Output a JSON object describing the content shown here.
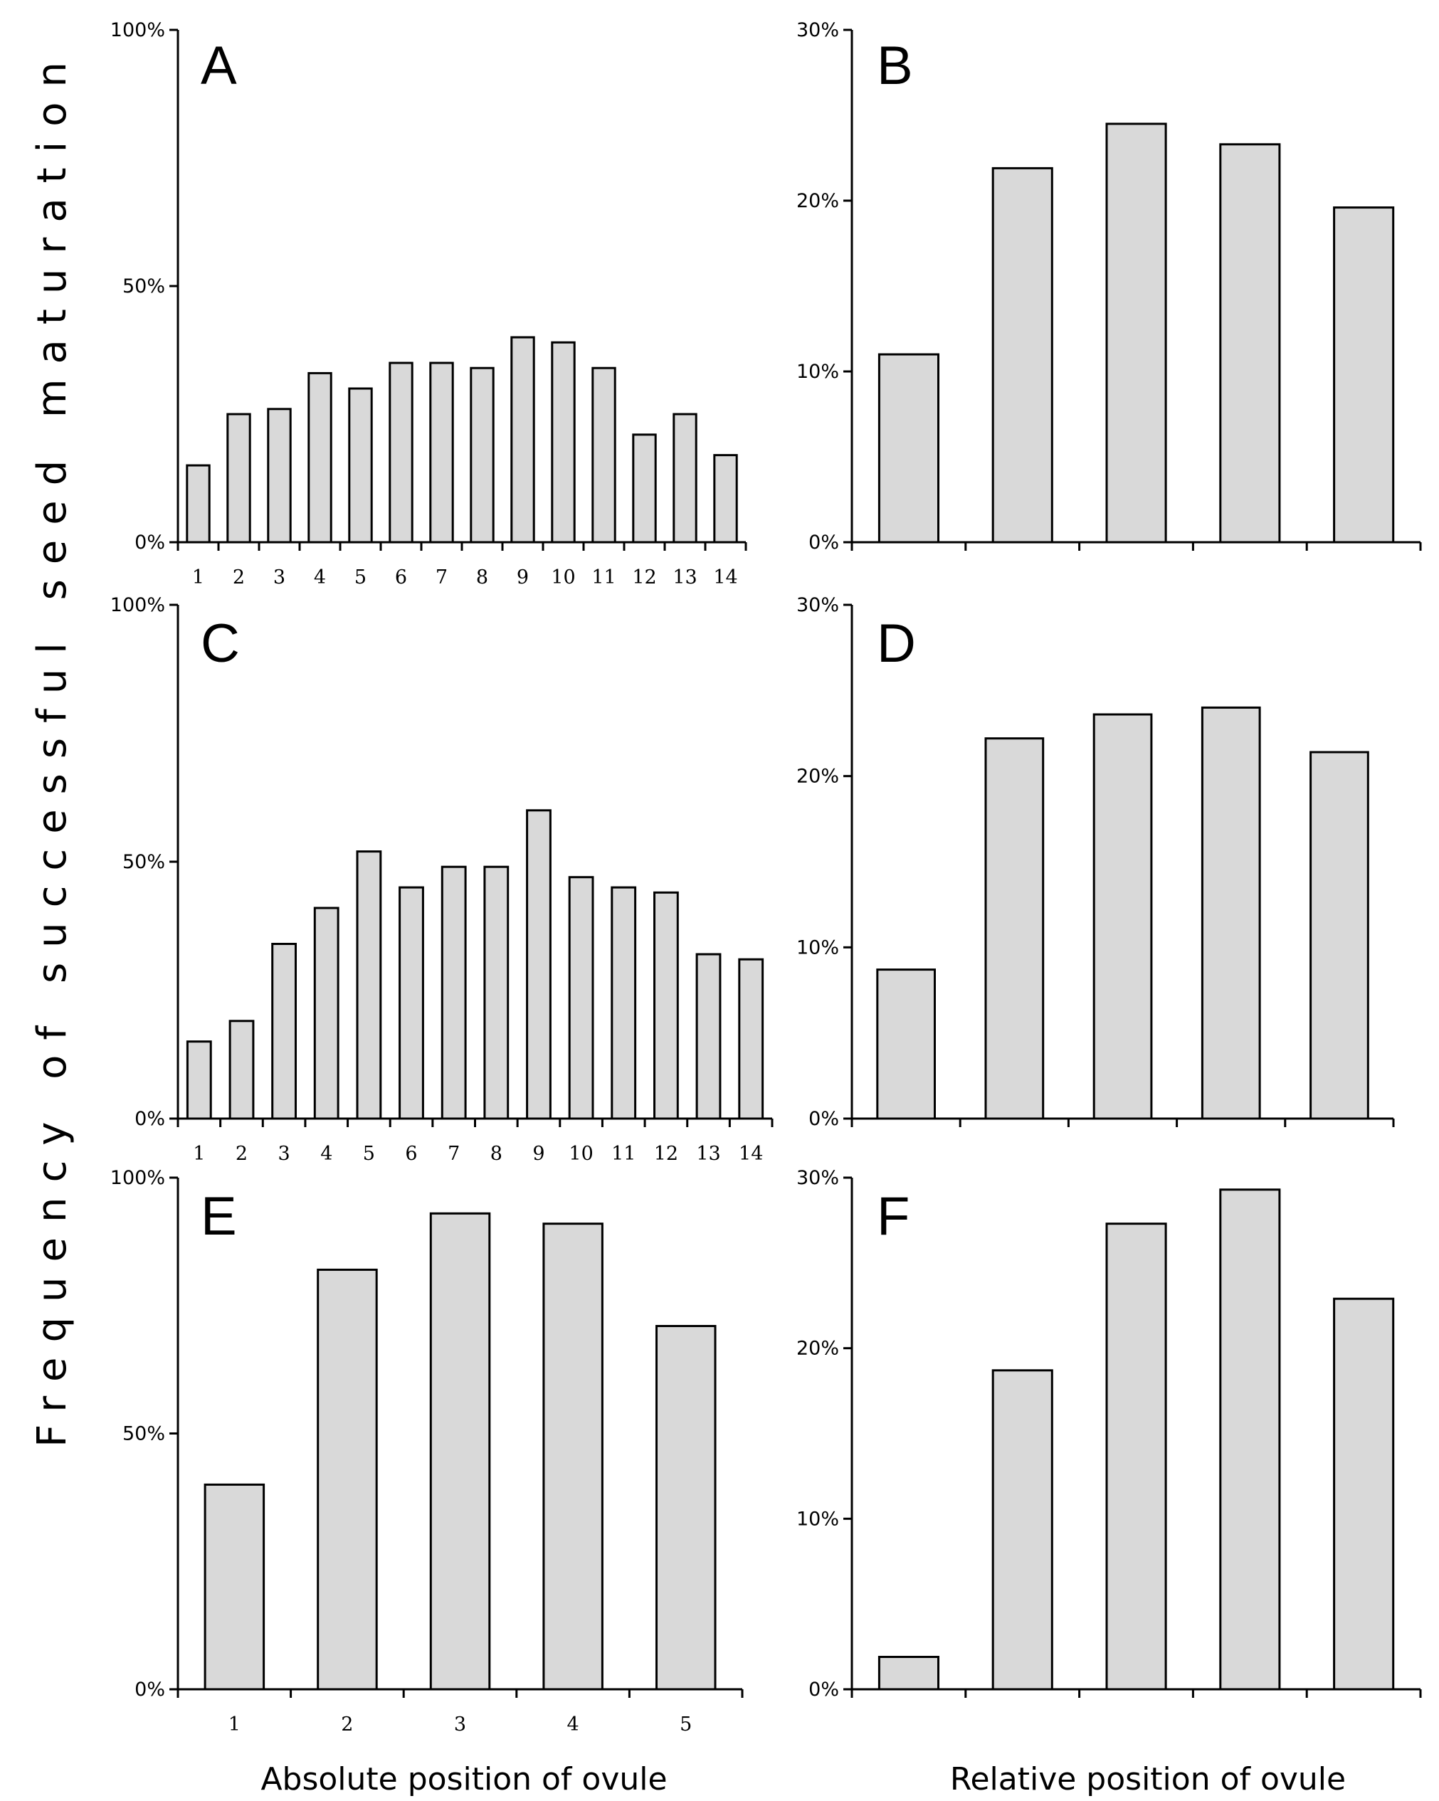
{
  "figure": {
    "ylabel": "Frequency of successful seed maturation",
    "xlabel_left": "Absolute position of ovule",
    "xlabel_right": "Relative position of ovule",
    "bar_fill": "#d9d9d9",
    "bar_stroke": "#000000"
  },
  "chart_data": [
    {
      "panel": "A",
      "type": "bar",
      "categories": [
        "1",
        "2",
        "3",
        "4",
        "5",
        "6",
        "7",
        "8",
        "9",
        "10",
        "11",
        "12",
        "13",
        "14"
      ],
      "values": [
        15,
        25,
        26,
        33,
        30,
        35,
        35,
        34,
        40,
        39,
        34,
        21,
        25,
        17
      ],
      "yticks": [
        "0%",
        "50%",
        "100%"
      ],
      "ylim": [
        0,
        100
      ]
    },
    {
      "panel": "B",
      "type": "bar",
      "categories": [
        "",
        "",
        "",
        "",
        ""
      ],
      "values": [
        11,
        21.9,
        24.5,
        23.3,
        19.6
      ],
      "yticks": [
        "0%",
        "10%",
        "20%",
        "30%"
      ],
      "ylim": [
        0,
        30
      ]
    },
    {
      "panel": "C",
      "type": "bar",
      "categories": [
        "1",
        "2",
        "3",
        "4",
        "5",
        "6",
        "7",
        "8",
        "9",
        "10",
        "11",
        "12",
        "13",
        "14"
      ],
      "values": [
        15,
        19,
        34,
        41,
        52,
        45,
        49,
        49,
        60,
        47,
        45,
        44,
        32,
        31
      ],
      "yticks": [
        "0%",
        "50%",
        "100%"
      ],
      "ylim": [
        0,
        100
      ]
    },
    {
      "panel": "D",
      "type": "bar",
      "categories": [
        "",
        "",
        "",
        "",
        ""
      ],
      "values": [
        8.7,
        22.2,
        23.6,
        24,
        21.4
      ],
      "yticks": [
        "0%",
        "10%",
        "20%",
        "30%"
      ],
      "ylim": [
        0,
        30
      ]
    },
    {
      "panel": "E",
      "type": "bar",
      "categories": [
        "1",
        "2",
        "3",
        "4",
        "5"
      ],
      "values": [
        40,
        82,
        93,
        91,
        71
      ],
      "yticks": [
        "0%",
        "50%",
        "100%"
      ],
      "ylim": [
        0,
        100
      ]
    },
    {
      "panel": "F",
      "type": "bar",
      "categories": [
        "",
        "",
        "",
        "",
        ""
      ],
      "values": [
        1.9,
        18.7,
        27.3,
        29.3,
        22.9
      ],
      "yticks": [
        "0%",
        "10%",
        "20%",
        "30%"
      ],
      "ylim": [
        0,
        30
      ]
    }
  ]
}
